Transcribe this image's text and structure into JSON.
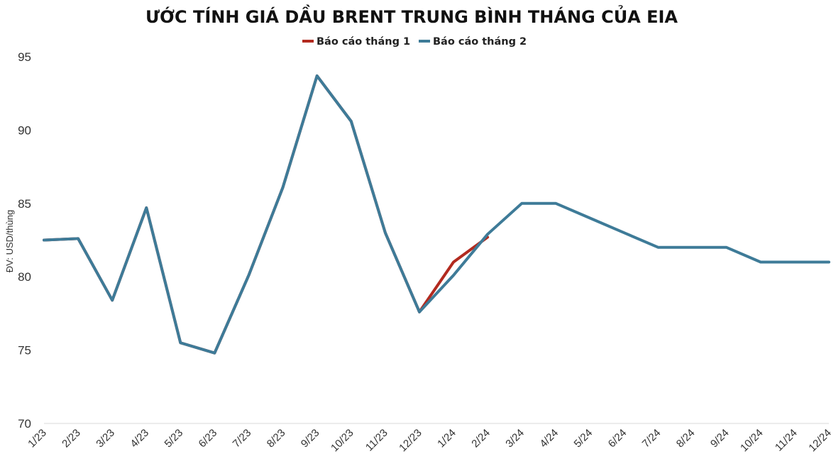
{
  "chart_data": {
    "type": "line",
    "title": "ƯỚC TÍNH GIÁ DẦU BRENT TRUNG BÌNH THÁNG CỦA EIA",
    "ylabel": "ĐV: USD/thùng",
    "xlabel": "",
    "ylim": [
      70,
      95
    ],
    "yticks": [
      70,
      75,
      80,
      85,
      90,
      95
    ],
    "categories": [
      "1/23",
      "2/23",
      "3/23",
      "4/23",
      "5/23",
      "6/23",
      "7/23",
      "8/23",
      "9/23",
      "10/23",
      "11/23",
      "12/23",
      "1/24",
      "2/24",
      "3/24",
      "4/24",
      "5/24",
      "6/24",
      "7/24",
      "8/24",
      "9/24",
      "10/24",
      "11/24",
      "12/24"
    ],
    "grid": false,
    "legend_position": "top-center",
    "series": [
      {
        "name": "Báo cáo tháng 1",
        "color": "#b22a1f",
        "values": [
          82.5,
          82.6,
          78.4,
          84.7,
          75.5,
          74.8,
          80.1,
          86.1,
          93.7,
          90.6,
          83.0,
          77.6,
          81.0,
          82.7,
          null,
          null,
          null,
          null,
          null,
          null,
          null,
          null,
          null,
          null
        ]
      },
      {
        "name": "Báo cáo tháng 2",
        "color": "#3e7b98",
        "values": [
          82.5,
          82.6,
          78.4,
          84.7,
          75.5,
          74.8,
          80.1,
          86.1,
          93.7,
          90.6,
          83.0,
          77.6,
          80.1,
          82.9,
          85.0,
          85.0,
          84.0,
          83.0,
          82.0,
          82.0,
          82.0,
          81.0,
          81.0,
          81.0
        ]
      }
    ]
  }
}
